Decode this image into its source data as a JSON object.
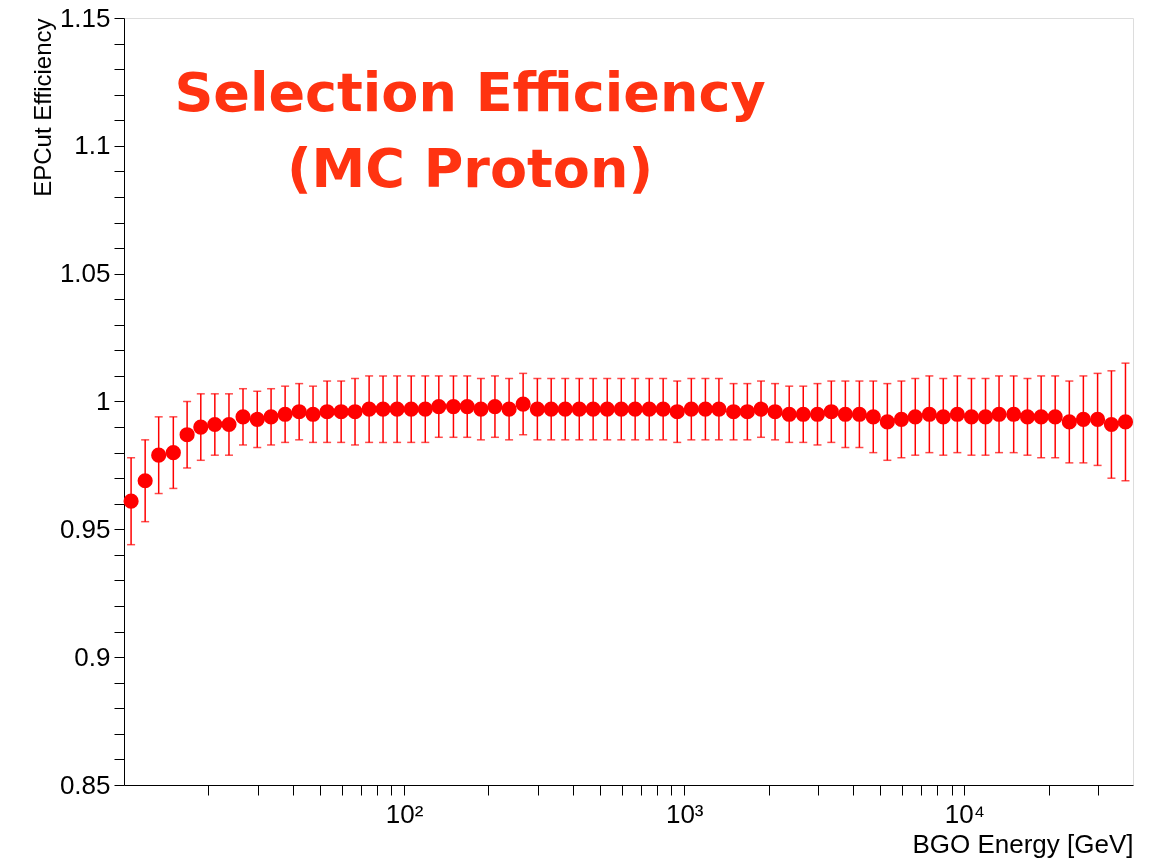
{
  "chart_data": {
    "type": "scatter",
    "title": "Selection Efficiency\n(MC Proton)",
    "xlabel": "BGO Energy [GeV]",
    "ylabel": "EPCut Efficiency",
    "log": "x",
    "marker": "circle",
    "grid": false,
    "xlim": [
      10,
      40000
    ],
    "ylim": [
      0.85,
      1.15
    ],
    "xticks": [
      {
        "value": 20,
        "label": null
      },
      {
        "value": 30,
        "label": null
      },
      {
        "value": 40,
        "label": null
      },
      {
        "value": 50,
        "label": null
      },
      {
        "value": 60,
        "label": null
      },
      {
        "value": 70,
        "label": null
      },
      {
        "value": 80,
        "label": null
      },
      {
        "value": 90,
        "label": null
      },
      {
        "value": 100,
        "label": "10²"
      },
      {
        "value": 200,
        "label": null
      },
      {
        "value": 300,
        "label": null
      },
      {
        "value": 400,
        "label": null
      },
      {
        "value": 500,
        "label": null
      },
      {
        "value": 600,
        "label": null
      },
      {
        "value": 700,
        "label": null
      },
      {
        "value": 800,
        "label": null
      },
      {
        "value": 900,
        "label": null
      },
      {
        "value": 1000,
        "label": "10³"
      },
      {
        "value": 2000,
        "label": null
      },
      {
        "value": 3000,
        "label": null
      },
      {
        "value": 4000,
        "label": null
      },
      {
        "value": 5000,
        "label": null
      },
      {
        "value": 6000,
        "label": null
      },
      {
        "value": 7000,
        "label": null
      },
      {
        "value": 8000,
        "label": null
      },
      {
        "value": 9000,
        "label": null
      },
      {
        "value": 10000,
        "label": "10⁴"
      },
      {
        "value": 20000,
        "label": null
      },
      {
        "value": 30000,
        "label": null
      }
    ],
    "yticks": [
      0.85,
      {
        "value": 0.86,
        "label": null
      },
      {
        "value": 0.87,
        "label": null
      },
      {
        "value": 0.88,
        "label": null
      },
      {
        "value": 0.89,
        "label": null
      },
      0.9,
      {
        "value": 0.91,
        "label": null
      },
      {
        "value": 0.92,
        "label": null
      },
      {
        "value": 0.93,
        "label": null
      },
      {
        "value": 0.94,
        "label": null
      },
      0.95,
      {
        "value": 0.96,
        "label": null
      },
      {
        "value": 0.97,
        "label": null
      },
      {
        "value": 0.98,
        "label": null
      },
      {
        "value": 0.99,
        "label": null
      },
      1,
      {
        "value": 1.01,
        "label": null
      },
      {
        "value": 1.02,
        "label": null
      },
      {
        "value": 1.03,
        "label": null
      },
      {
        "value": 1.04,
        "label": null
      },
      1.05,
      {
        "value": 1.06,
        "label": null
      },
      {
        "value": 1.07,
        "label": null
      },
      {
        "value": 1.08,
        "label": null
      },
      {
        "value": 1.09,
        "label": null
      },
      1.1,
      {
        "value": 1.11,
        "label": null
      },
      {
        "value": 1.12,
        "label": null
      },
      {
        "value": 1.13,
        "label": null
      },
      {
        "value": 1.14,
        "label": null
      },
      1.15
    ],
    "series": [
      {
        "color": "#ff0000",
        "x": [
          10.6,
          11.9,
          13.3,
          15.0,
          16.8,
          18.8,
          21.1,
          23.7,
          26.6,
          29.9,
          33.5,
          37.6,
          42.2,
          47.3,
          53.1,
          59.6,
          66.8,
          75.0,
          84.1,
          94.4,
          106,
          119,
          133,
          150,
          168,
          188,
          211,
          237,
          266,
          299,
          335,
          376,
          422,
          473,
          531,
          596,
          668,
          750,
          841,
          944,
          1060,
          1190,
          1330,
          1500,
          1680,
          1880,
          2110,
          2370,
          2660,
          2990,
          3350,
          3760,
          4220,
          4730,
          5310,
          5960,
          6680,
          7500,
          8410,
          9440,
          10600,
          11900,
          13300,
          15000,
          16800,
          18800,
          21100,
          23700,
          26600,
          29900,
          33500,
          37600
        ],
        "values": [
          0.961,
          0.969,
          0.979,
          0.98,
          0.987,
          0.99,
          0.991,
          0.991,
          0.994,
          0.993,
          0.994,
          0.995,
          0.996,
          0.995,
          0.996,
          0.996,
          0.996,
          0.997,
          0.997,
          0.997,
          0.997,
          0.997,
          0.998,
          0.998,
          0.998,
          0.997,
          0.998,
          0.997,
          0.999,
          0.997,
          0.997,
          0.997,
          0.997,
          0.997,
          0.997,
          0.997,
          0.997,
          0.997,
          0.997,
          0.996,
          0.997,
          0.997,
          0.997,
          0.996,
          0.996,
          0.997,
          0.996,
          0.995,
          0.995,
          0.995,
          0.996,
          0.995,
          0.995,
          0.994,
          0.992,
          0.993,
          0.994,
          0.995,
          0.994,
          0.995,
          0.994,
          0.994,
          0.995,
          0.995,
          0.994,
          0.994,
          0.994,
          0.992,
          0.993,
          0.993,
          0.991,
          0.992
        ],
        "errors": [
          0.017,
          0.016,
          0.015,
          0.014,
          0.013,
          0.013,
          0.012,
          0.012,
          0.011,
          0.011,
          0.011,
          0.011,
          0.011,
          0.011,
          0.012,
          0.012,
          0.013,
          0.013,
          0.013,
          0.013,
          0.013,
          0.013,
          0.012,
          0.012,
          0.012,
          0.012,
          0.012,
          0.012,
          0.012,
          0.012,
          0.012,
          0.012,
          0.012,
          0.012,
          0.012,
          0.012,
          0.012,
          0.012,
          0.012,
          0.012,
          0.012,
          0.012,
          0.012,
          0.011,
          0.011,
          0.011,
          0.011,
          0.011,
          0.011,
          0.012,
          0.012,
          0.013,
          0.013,
          0.014,
          0.015,
          0.015,
          0.015,
          0.015,
          0.015,
          0.015,
          0.015,
          0.015,
          0.015,
          0.015,
          0.015,
          0.016,
          0.016,
          0.016,
          0.017,
          0.018,
          0.021,
          0.023
        ]
      }
    ]
  }
}
